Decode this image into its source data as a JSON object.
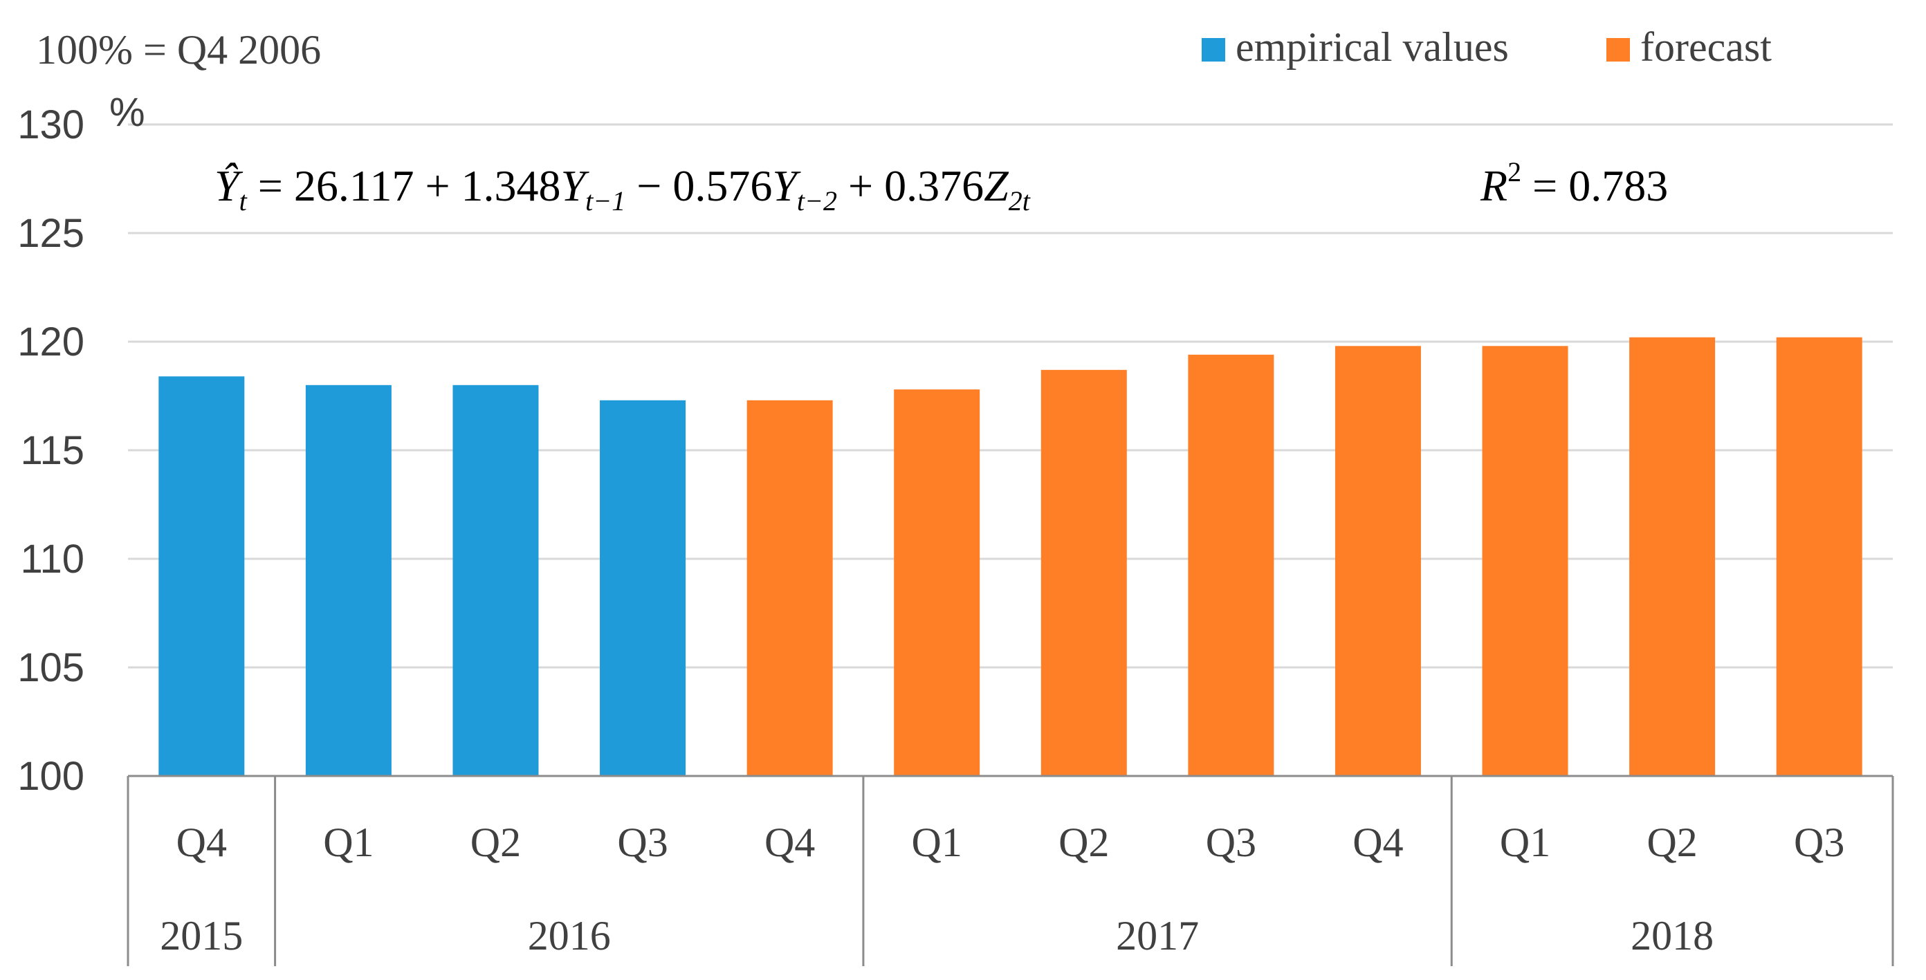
{
  "chart_data": {
    "type": "bar",
    "base_note": "100% = Q4 2006",
    "ylabel": "%",
    "ylim": [
      100,
      130
    ],
    "yticks": [
      "100",
      "105",
      "110",
      "115",
      "120",
      "125",
      "130"
    ],
    "grid": true,
    "legend": {
      "position": "top-right",
      "entries": [
        {
          "label": "empirical values",
          "color": "#1F9BD9"
        },
        {
          "label": "forecast",
          "color": "#FF7F27"
        }
      ]
    },
    "categories": [
      "Q4",
      "Q1",
      "Q2",
      "Q3",
      "Q4",
      "Q1",
      "Q2",
      "Q3",
      "Q4",
      "Q1",
      "Q2",
      "Q3"
    ],
    "years": [
      {
        "label": "2015",
        "span": 1
      },
      {
        "label": "2016",
        "span": 4
      },
      {
        "label": "2017",
        "span": 4
      },
      {
        "label": "2018",
        "span": 3
      }
    ],
    "values": [
      118.4,
      118.0,
      118.0,
      117.3,
      117.3,
      117.8,
      118.7,
      119.4,
      119.8,
      119.8,
      120.2,
      120.2
    ],
    "series_type": [
      "empirical",
      "empirical",
      "empirical",
      "empirical",
      "forecast",
      "forecast",
      "forecast",
      "forecast",
      "forecast",
      "forecast",
      "forecast",
      "forecast"
    ],
    "equation": {
      "lhs": "Ŷt",
      "text": "= 26.117 + 1.348Yt−1 − 0.576Yt−2 + 0.376Z2t",
      "r2": "R2 = 0.783"
    }
  }
}
